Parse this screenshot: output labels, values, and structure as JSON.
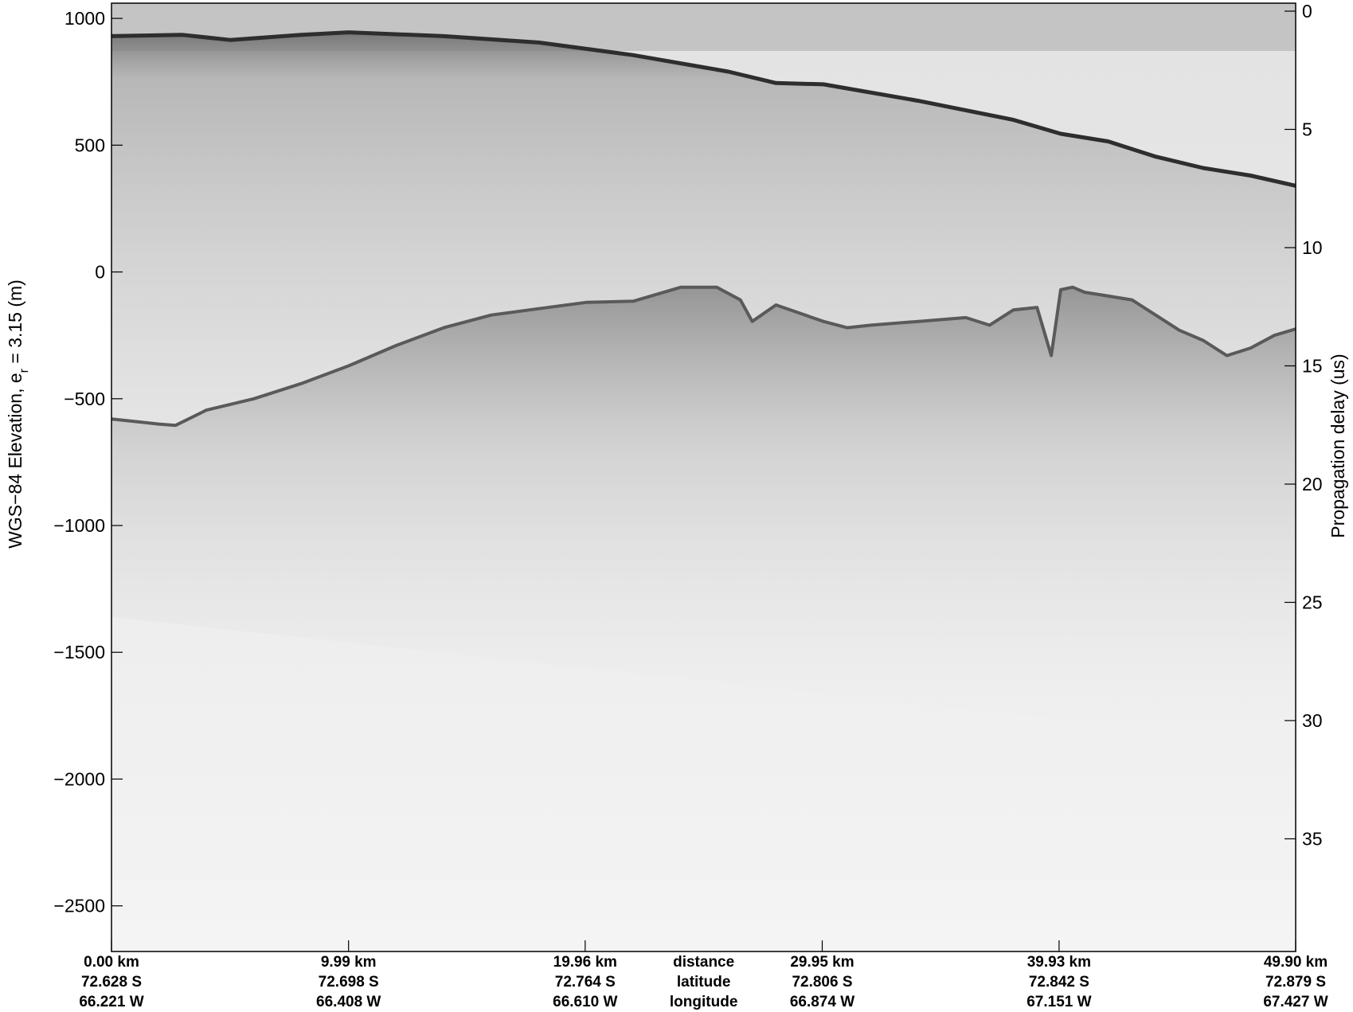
{
  "chart_data": {
    "type": "heatmap",
    "description_kind": "radar echogram (grayscale)",
    "left_axis": {
      "label_main": "WGS−84 Elevation, e",
      "label_sub": "r",
      "label_tail": " = 3.15 (m)",
      "ylim": [
        -2680,
        1060
      ],
      "ticks": [
        1000,
        500,
        0,
        -500,
        -1000,
        -1500,
        -2000,
        -2500
      ],
      "tick_labels": [
        "1000",
        "500",
        "0",
        "−500",
        "−1000",
        "−1500",
        "−2000",
        "−2500"
      ]
    },
    "right_axis": {
      "label": "Propagation delay (us)",
      "ticks": [
        0,
        5,
        10,
        15,
        20,
        25,
        30,
        35
      ],
      "tick_labels": [
        "0",
        "5",
        "10",
        "15",
        "20",
        "25",
        "30",
        "35"
      ]
    },
    "x_axis": {
      "xlim": [
        0,
        49.9
      ],
      "ticks_km": [
        0.0,
        9.99,
        19.96,
        29.95,
        39.93,
        49.9
      ],
      "distance_labels": [
        "0.00 km",
        "9.99 km",
        "19.96 km",
        "29.95 km",
        "39.93 km",
        "49.90 km"
      ],
      "latitude_labels": [
        "72.628 S",
        "72.698 S",
        "72.764 S",
        "72.806 S",
        "72.842 S",
        "72.879 S"
      ],
      "longitude_labels": [
        "66.221 W",
        "66.408 W",
        "66.610 W",
        "66.874 W",
        "67.151 W",
        "67.427 W"
      ],
      "row_names": [
        "distance",
        "latitude",
        "longitude"
      ]
    },
    "surface_elevation": {
      "x": [
        0,
        3,
        5,
        8,
        10,
        14,
        18,
        22,
        26,
        28,
        30,
        34,
        38,
        40,
        42,
        44,
        46,
        48,
        49.9
      ],
      "y": [
        930,
        935,
        915,
        935,
        945,
        930,
        905,
        855,
        790,
        745,
        740,
        675,
        600,
        545,
        515,
        455,
        410,
        380,
        340
      ]
    },
    "bed_elevation": {
      "x": [
        0,
        1,
        2,
        2.7,
        4,
        6,
        8,
        10,
        12,
        14,
        16,
        18,
        20,
        22,
        24,
        25.5,
        26.5,
        27,
        28,
        30,
        31,
        32,
        34,
        36,
        37,
        38,
        39,
        39.6,
        40,
        40.5,
        41,
        43,
        44,
        45,
        46,
        47,
        48,
        49,
        49.9
      ],
      "y": [
        -580,
        -590,
        -600,
        -605,
        -545,
        -500,
        -440,
        -370,
        -290,
        -220,
        -170,
        -145,
        -120,
        -115,
        -60,
        -60,
        -110,
        -195,
        -130,
        -195,
        -220,
        -210,
        -195,
        -180,
        -210,
        -150,
        -140,
        -330,
        -70,
        -60,
        -80,
        -110,
        -170,
        -230,
        -270,
        -330,
        -300,
        -250,
        -225
      ]
    }
  }
}
